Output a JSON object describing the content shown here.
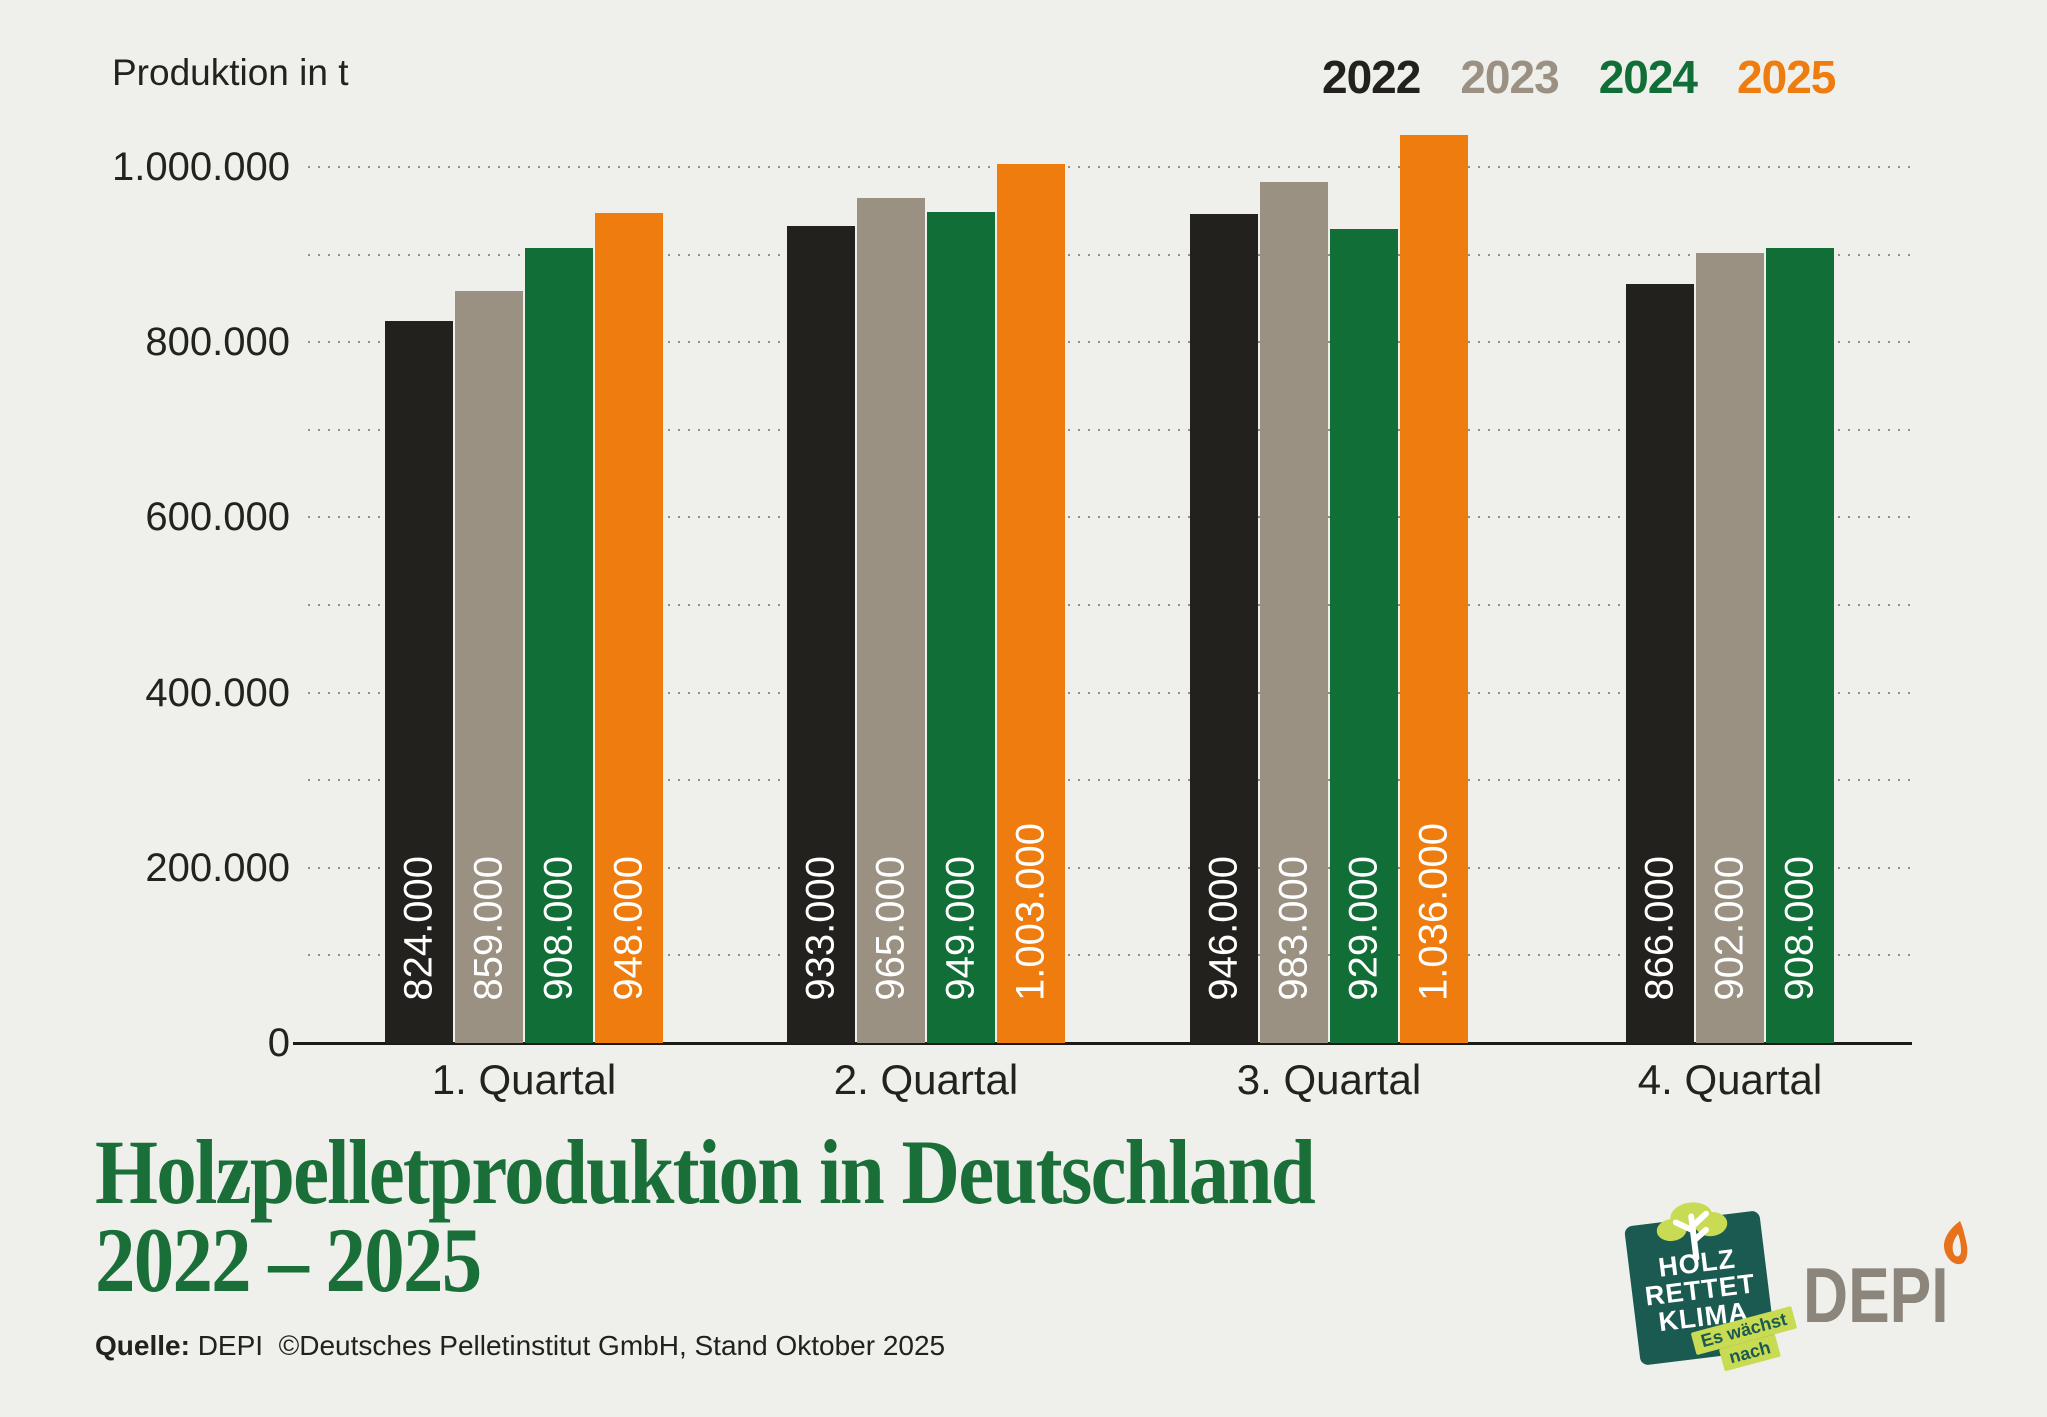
{
  "header": {
    "axis_title": "Produktion in t"
  },
  "chart_data": {
    "type": "bar",
    "categories": [
      "1. Quartal",
      "2. Quartal",
      "3. Quartal",
      "4. Quartal"
    ],
    "series": [
      {
        "name": "2022",
        "color": "#23211d",
        "values": [
          824000,
          933000,
          946000,
          866000
        ]
      },
      {
        "name": "2023",
        "color": "#9a9183",
        "values": [
          859000,
          965000,
          983000,
          902000
        ]
      },
      {
        "name": "2024",
        "color": "#116e37",
        "values": [
          908000,
          949000,
          929000,
          908000
        ]
      },
      {
        "name": "2025",
        "color": "#ee7c0e",
        "values": [
          948000,
          1003000,
          1036000,
          null
        ]
      }
    ],
    "bar_value_labels": [
      [
        "824.000",
        "859.000",
        "908.000",
        "948.000"
      ],
      [
        "933.000",
        "965.000",
        "949.000",
        "1.003.000"
      ],
      [
        "946.000",
        "983.000",
        "929.000",
        "1.036.000"
      ],
      [
        "866.000",
        "902.000",
        "908.000",
        null
      ]
    ],
    "ylabel": "Produktion in t",
    "ylim": [
      0,
      1000000
    ],
    "ytick_values": [
      0,
      200000,
      400000,
      600000,
      800000,
      1000000
    ],
    "ytick_labels": [
      "0",
      "200.000",
      "400.000",
      "600.000",
      "800.000",
      "1.000.000"
    ],
    "gridline_step": 100000,
    "grid": true,
    "legend_position": "top-right",
    "value_labels_inside_bars": true
  },
  "title": {
    "line1": "Holzpelletproduktion in Deutschland",
    "line2": "2022 – 2025"
  },
  "source": {
    "label": "Quelle:",
    "text": " DEPI  ©Deutsches Pelletinstitut GmbH, Stand Oktober 2025"
  },
  "logos": {
    "holz_rettet_klima": {
      "lines": [
        "HOLZ",
        "RETTET",
        "KLIMA"
      ],
      "tag_line1": "Es wächst",
      "tag_line2": "nach",
      "box_color": "#1b5a51",
      "leaf_color": "#c9da53"
    },
    "depi": {
      "text": "DEPI",
      "text_color": "#8b857b",
      "flame_color": "#e8711c"
    }
  },
  "colors": {
    "background": "#eff0ec",
    "grid": "#8f8f87",
    "axis": "#1d1b17",
    "text": "#23221d",
    "title": "#1a6e38",
    "bar_value_text": "#ffffff"
  }
}
